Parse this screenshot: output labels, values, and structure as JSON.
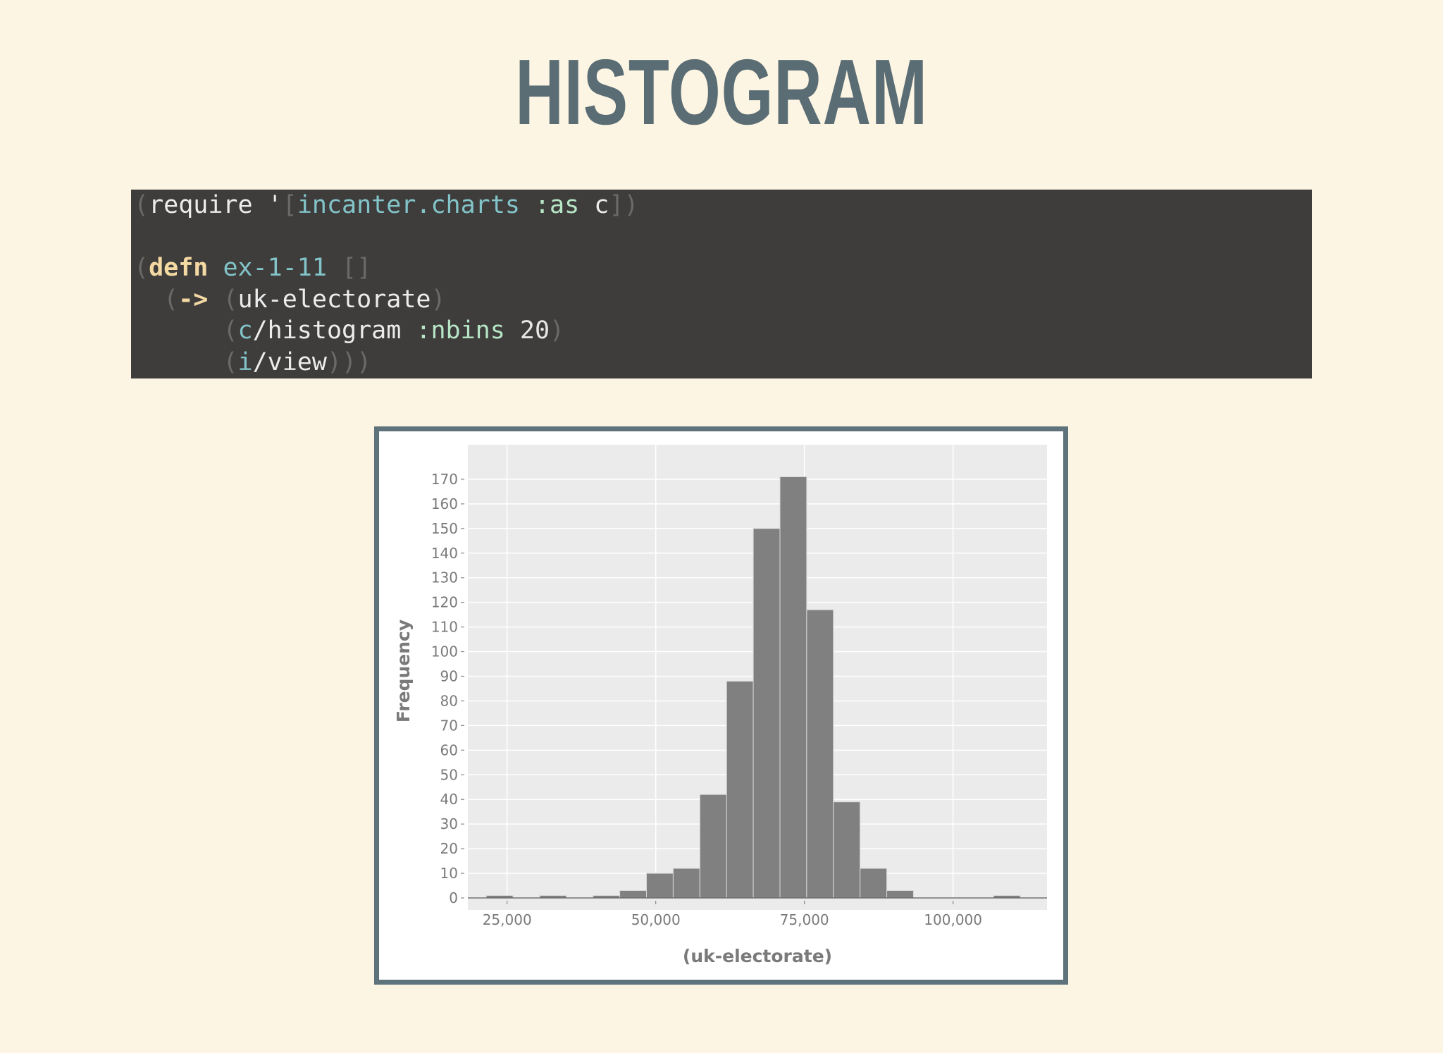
{
  "slide": {
    "title": "HISTOGRAM"
  },
  "code": {
    "lines": [
      [
        {
          "t": "(",
          "c": "paren"
        },
        {
          "t": "require ",
          "c": "plain"
        },
        {
          "t": "'",
          "c": "plain"
        },
        {
          "t": "[",
          "c": "paren"
        },
        {
          "t": "incanter.charts",
          "c": "ns"
        },
        {
          "t": " ",
          "c": "plain"
        },
        {
          "t": ":as",
          "c": "kw"
        },
        {
          "t": " c",
          "c": "plain"
        },
        {
          "t": "])",
          "c": "paren"
        }
      ],
      [],
      [
        {
          "t": "(",
          "c": "paren"
        },
        {
          "t": "defn",
          "c": "def"
        },
        {
          "t": " ",
          "c": "plain"
        },
        {
          "t": "ex-1-11",
          "c": "sym"
        },
        {
          "t": " ",
          "c": "plain"
        },
        {
          "t": "[]",
          "c": "paren"
        }
      ],
      [
        {
          "t": "  ",
          "c": "plain"
        },
        {
          "t": "(",
          "c": "paren"
        },
        {
          "t": "->",
          "c": "def"
        },
        {
          "t": " ",
          "c": "plain"
        },
        {
          "t": "(",
          "c": "paren"
        },
        {
          "t": "uk-electorate",
          "c": "plain"
        },
        {
          "t": ")",
          "c": "paren"
        }
      ],
      [
        {
          "t": "      ",
          "c": "plain"
        },
        {
          "t": "(",
          "c": "paren"
        },
        {
          "t": "c",
          "c": "sym"
        },
        {
          "t": "/histogram ",
          "c": "plain"
        },
        {
          "t": ":nbins",
          "c": "kw"
        },
        {
          "t": " 20",
          "c": "num"
        },
        {
          "t": ")",
          "c": "paren"
        }
      ],
      [
        {
          "t": "      ",
          "c": "plain"
        },
        {
          "t": "(",
          "c": "paren"
        },
        {
          "t": "i",
          "c": "sym"
        },
        {
          "t": "/view",
          "c": "plain"
        },
        {
          "t": ")))",
          "c": "paren"
        }
      ]
    ]
  },
  "colors": {
    "title": "#5b6d74",
    "code_bg": "#3e3d3c",
    "frame": "#5e737b",
    "plot_bg": "#ebebeb",
    "bar_fill": "#808080",
    "grid": "#ffffff"
  },
  "chart_data": {
    "type": "bar",
    "title": "",
    "xlabel": "(uk-electorate)",
    "ylabel": "Frequency",
    "xlim": [
      18400,
      115800
    ],
    "ylim": [
      0,
      180
    ],
    "bin_width": 4490,
    "bin_starts": [
      21500,
      25990,
      30480,
      34970,
      39460,
      43950,
      48440,
      52930,
      57420,
      61910,
      66400,
      70890,
      75380,
      79870,
      84360,
      88850,
      93340,
      97830,
      102320,
      106810
    ],
    "values": [
      1,
      0,
      1,
      0,
      1,
      3,
      10,
      12,
      42,
      88,
      150,
      171,
      117,
      39,
      12,
      3,
      0,
      0,
      0,
      1
    ],
    "x_ticks": [
      25000,
      50000,
      75000,
      100000
    ],
    "x_tick_labels": [
      "25,000",
      "50,000",
      "75,000",
      "100,000"
    ],
    "y_ticks": [
      0,
      10,
      20,
      30,
      40,
      50,
      60,
      70,
      80,
      90,
      100,
      110,
      120,
      130,
      140,
      150,
      160,
      170
    ],
    "grid": true,
    "legend": "none"
  }
}
